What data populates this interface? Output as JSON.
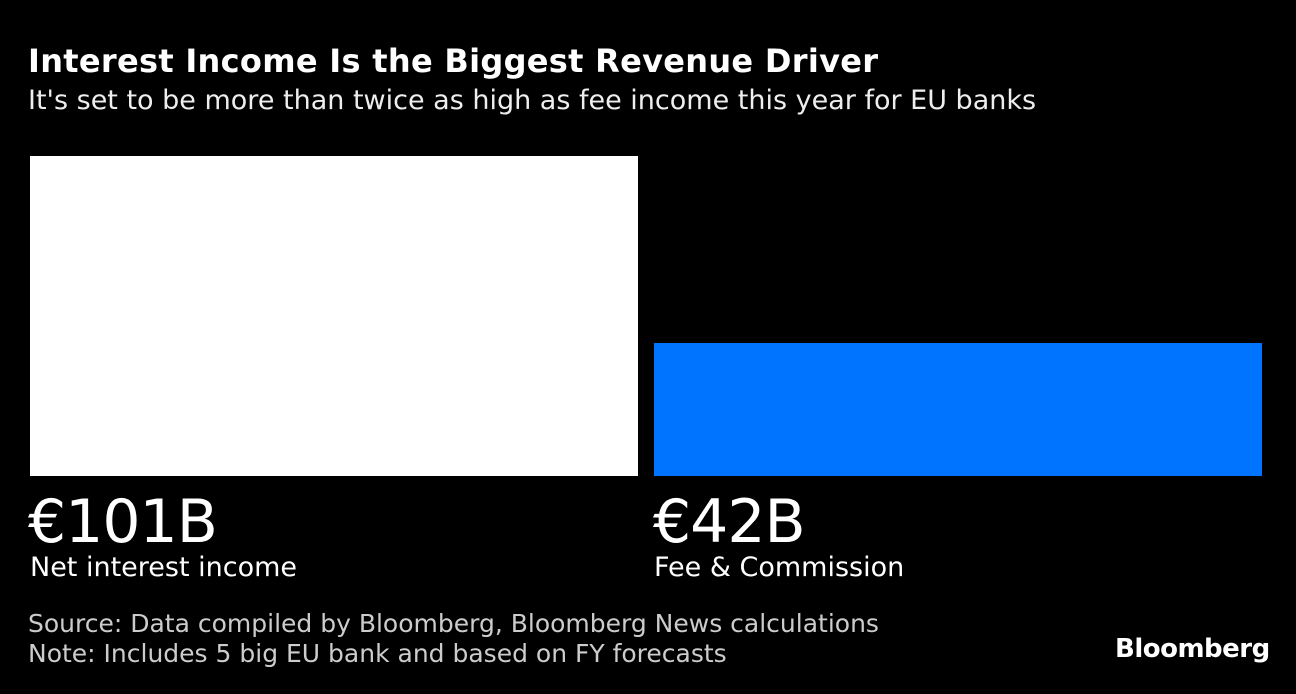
{
  "chart_data": {
    "type": "bar",
    "title": "Interest Income Is the Biggest Revenue Driver",
    "subtitle": "It's set to be more than twice as high as fee income this year for EU banks",
    "categories": [
      "Net interest income",
      "Fee & Commission"
    ],
    "values": [
      101,
      42
    ],
    "value_labels": [
      "€101B",
      "€42B"
    ],
    "unit": "€ billions",
    "colors": [
      "#ffffff",
      "#0073ff"
    ],
    "ylim": [
      0,
      101
    ],
    "grid": false
  },
  "footer": {
    "source": "Source: Data compiled by Bloomberg, Bloomberg News calculations",
    "note": "Note: Includes 5 big EU bank and based on FY forecasts",
    "logo": "Bloomberg"
  }
}
